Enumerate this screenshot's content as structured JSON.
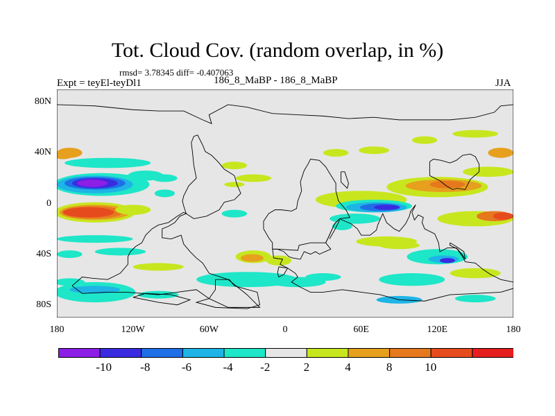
{
  "title": "Tot. Cloud Cov. (random overlap, in %)",
  "stats_line": "rmsd= 3.78345 diff= -0.407063",
  "experiment_label": "Expt = teyEl-teyDl1",
  "case_label": "186_8_MaBP - 186_8_MaBP",
  "season": "JJA",
  "map": {
    "projection": "cylindrical equidistant",
    "lon_range": [
      -180,
      180
    ],
    "lat_range": [
      -90,
      90
    ],
    "x_ticks": [
      {
        "label": "180",
        "lon": -180
      },
      {
        "label": "120W",
        "lon": -120
      },
      {
        "label": "60W",
        "lon": -60
      },
      {
        "label": "0",
        "lon": 0
      },
      {
        "label": "60E",
        "lon": 60
      },
      {
        "label": "120E",
        "lon": 120
      },
      {
        "label": "180",
        "lon": 180
      }
    ],
    "y_ticks": [
      {
        "label": "80N",
        "lat": 80
      },
      {
        "label": "40N",
        "lat": 40
      },
      {
        "label": "0",
        "lat": 0
      },
      {
        "label": "40S",
        "lat": -40
      },
      {
        "label": "80S",
        "lat": -80
      }
    ]
  },
  "colorbar": {
    "levels": [
      "-10",
      "-8",
      "-6",
      "-4",
      "-2",
      "2",
      "4",
      "8",
      "10"
    ],
    "colors": [
      "#8c1ee6",
      "#3a2be0",
      "#1e6fe6",
      "#1eb4e6",
      "#1ee6c8",
      "#e6e6e6",
      "#c8e61e",
      "#e6a01e",
      "#e6781e",
      "#e64b1e",
      "#e61e1e"
    ]
  },
  "chart_data": {
    "type": "heatmap",
    "title": "Tot. Cloud Cov. (random overlap, in %)",
    "xlabel": "",
    "ylabel": "",
    "xlim": [
      -180,
      180
    ],
    "ylim": [
      -90,
      90
    ],
    "units": "%",
    "contour_levels": [
      -10,
      -8,
      -6,
      -4,
      -2,
      2,
      4,
      8,
      10
    ],
    "features": [
      {
        "lon": -150,
        "lat": 15,
        "value": -10
      },
      {
        "lon": -150,
        "lat": -8,
        "value": 11
      },
      {
        "lon": 170,
        "lat": -8,
        "value": 10
      },
      {
        "lon": 80,
        "lat": -3,
        "value": -8
      },
      {
        "lon": 125,
        "lat": -45,
        "value": -8
      },
      {
        "lon": -25,
        "lat": -45,
        "value": 5
      },
      {
        "lon": 125,
        "lat": 15,
        "value": 6
      },
      {
        "lon": 170,
        "lat": 40,
        "value": 7
      },
      {
        "lon": -175,
        "lat": 40,
        "value": 7
      }
    ]
  }
}
